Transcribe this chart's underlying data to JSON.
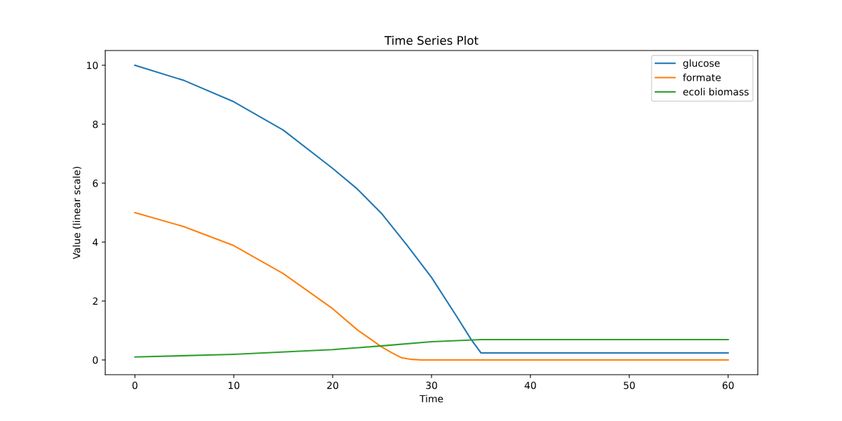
{
  "chart_data": {
    "type": "line",
    "title": "Time Series Plot",
    "xlabel": "Time",
    "ylabel": "Value (linear scale)",
    "xlim": [
      -3,
      63
    ],
    "ylim": [
      -0.5,
      10.5
    ],
    "xticks": [
      0,
      10,
      20,
      30,
      40,
      50,
      60
    ],
    "yticks": [
      0,
      2,
      4,
      6,
      8,
      10
    ],
    "legend": "top right",
    "grid": false,
    "line_style": "solid",
    "marker": "none",
    "series": [
      {
        "name": "glucose",
        "color": "#1f77b4",
        "x": [
          0,
          5,
          10,
          15,
          20,
          22.5,
          25,
          27.5,
          30,
          32.5,
          34,
          35,
          60
        ],
        "values": [
          10,
          9.48,
          8.76,
          7.8,
          6.5,
          5.8,
          4.95,
          3.9,
          2.8,
          1.5,
          0.7,
          0.24,
          0.24
        ]
      },
      {
        "name": "formate",
        "color": "#ff7f0e",
        "x": [
          0,
          5,
          10,
          15,
          20,
          22.5,
          25,
          26,
          27,
          28,
          29,
          60
        ],
        "values": [
          5,
          4.52,
          3.88,
          2.93,
          1.74,
          1.02,
          0.43,
          0.24,
          0.07,
          0.02,
          0,
          0
        ]
      },
      {
        "name": "ecoli biomass",
        "color": "#2ca02c",
        "x": [
          0,
          10,
          20,
          25,
          30,
          35,
          60
        ],
        "values": [
          0.1,
          0.19,
          0.35,
          0.48,
          0.62,
          0.69,
          0.69
        ]
      }
    ]
  }
}
